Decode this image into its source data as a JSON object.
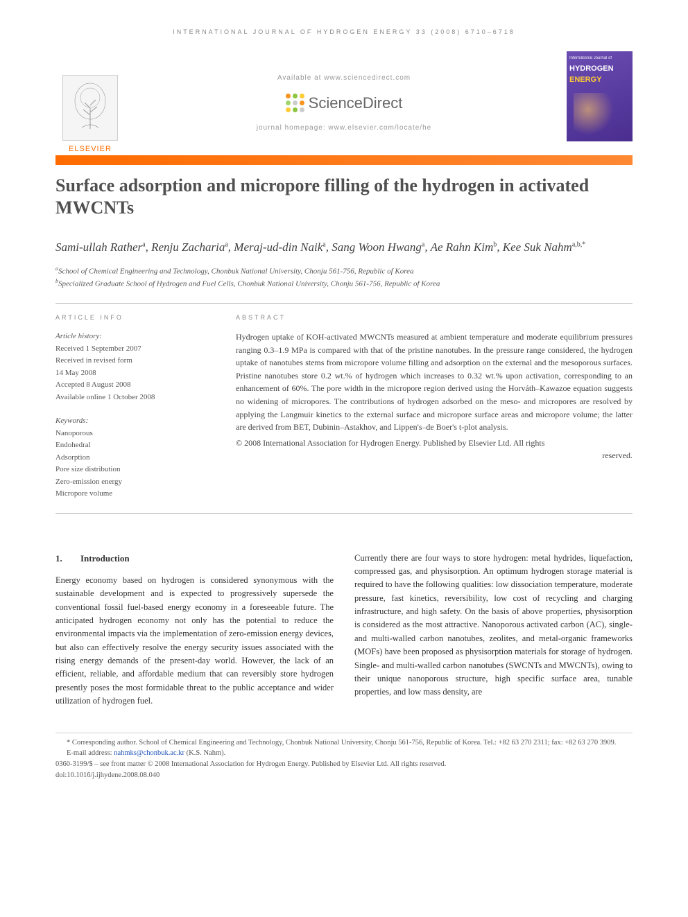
{
  "running_head": "INTERNATIONAL JOURNAL OF HYDROGEN ENERGY 33 (2008) 6710–6718",
  "header": {
    "available_at": "Available at www.sciencedirect.com",
    "brand": "ScienceDirect",
    "homepage": "journal homepage: www.elsevier.com/locate/he",
    "elsevier": "ELSEVIER",
    "cover_line1": "International Journal of",
    "cover_line2": "HYDROGEN",
    "cover_line3": "ENERGY"
  },
  "dot_colors": [
    "#f7931e",
    "#8cc63f",
    "#ffcc33",
    "#a0d468",
    "#cccccc",
    "#f7931e",
    "#ffcc33",
    "#8cc63f",
    "#cccccc"
  ],
  "title": "Surface adsorption and micropore filling of the hydrogen in activated MWCNTs",
  "authors_html": "Sami-ullah Rather<sup>a</sup>, Renju Zacharia<sup>a</sup>, Meraj-ud-din Naik<sup>a</sup>, Sang Woon Hwang<sup>a</sup>, Ae Rahn Kim<sup>b</sup>, Kee Suk Nahm<sup>a,b,*</sup>",
  "affiliations": [
    "<sup>a</sup>School of Chemical Engineering and Technology, Chonbuk National University, Chonju 561-756, Republic of Korea",
    "<sup>b</sup>Specialized Graduate School of Hydrogen and Fuel Cells, Chonbuk National University, Chonju 561-756, Republic of Korea"
  ],
  "article_info": {
    "heading": "ARTICLE INFO",
    "history_label": "Article history:",
    "history": [
      "Received 1 September 2007",
      "Received in revised form",
      "14 May 2008",
      "Accepted 8 August 2008",
      "Available online 1 October 2008"
    ],
    "keywords_label": "Keywords:",
    "keywords": [
      "Nanoporous",
      "Endohedral",
      "Adsorption",
      "Pore size distribution",
      "Zero-emission energy",
      "Micropore volume"
    ]
  },
  "abstract": {
    "heading": "ABSTRACT",
    "text": "Hydrogen uptake of KOH-activated MWCNTs measured at ambient temperature and moderate equilibrium pressures ranging 0.3–1.9 MPa is compared with that of the pristine nanotubes. In the pressure range considered, the hydrogen uptake of nanotubes stems from micropore volume filling and adsorption on the external and the mesoporous surfaces. Pristine nanotubes store 0.2 wt.% of hydrogen which increases to 0.32 wt.% upon activation, corresponding to an enhancement of 60%. The pore width in the micropore region derived using the Horváth–Kawazoe equation suggests no widening of micropores. The contributions of hydrogen adsorbed on the meso- and micropores are resolved by applying the Langmuir kinetics to the external surface and micropore surface areas and micropore volume; the latter are derived from BET, Dubinin–Astakhov, and Lippen's–de Boer's t-plot analysis.",
    "copyright": "© 2008 International Association for Hydrogen Energy. Published by Elsevier Ltd. All rights",
    "reserved": "reserved."
  },
  "section1": {
    "num": "1.",
    "title": "Introduction",
    "col1": "Energy economy based on hydrogen is considered synonymous with the sustainable development and is expected to progressively supersede the conventional fossil fuel-based energy economy in a foreseeable future. The anticipated hydrogen economy not only has the potential to reduce the environmental impacts via the implementation of zero-emission energy devices, but also can effectively resolve the energy security issues associated with the rising energy demands of the present-day world. However, the lack of an efficient, reliable, and affordable medium that can reversibly store hydrogen presently poses the most formidable threat to the public acceptance and wider utilization of hydrogen fuel.",
    "col2": "Currently there are four ways to store hydrogen: metal hydrides, liquefaction, compressed gas, and physisorption. An optimum hydrogen storage material is required to have the following qualities: low dissociation temperature, moderate pressure, fast kinetics, reversibility, low cost of recycling and charging infrastructure, and high safety. On the basis of above properties, physisorption is considered as the most attractive. Nanoporous activated carbon (AC), single- and multi-walled carbon nanotubes, zeolites, and metal-organic frameworks (MOFs) have been proposed as physisorption materials for storage of hydrogen. Single- and multi-walled carbon nanotubes (SWCNTs and MWCNTs), owing to their unique nanoporous structure, high specific surface area, tunable properties, and low mass density, are"
  },
  "footnotes": {
    "corresponding": "* Corresponding author. School of Chemical Engineering and Technology, Chonbuk National University, Chonju 561-756, Republic of Korea. Tel.: +82 63 270 2311; fax: +82 63 270 3909.",
    "email_label": "E-mail address:",
    "email": "nahmks@chonbuk.ac.kr",
    "email_tail": "(K.S. Nahm).",
    "line3": "0360-3199/$ – see front matter © 2008 International Association for Hydrogen Energy. Published by Elsevier Ltd. All rights reserved.",
    "doi": "doi:10.1016/j.ijhydene.2008.08.040"
  }
}
